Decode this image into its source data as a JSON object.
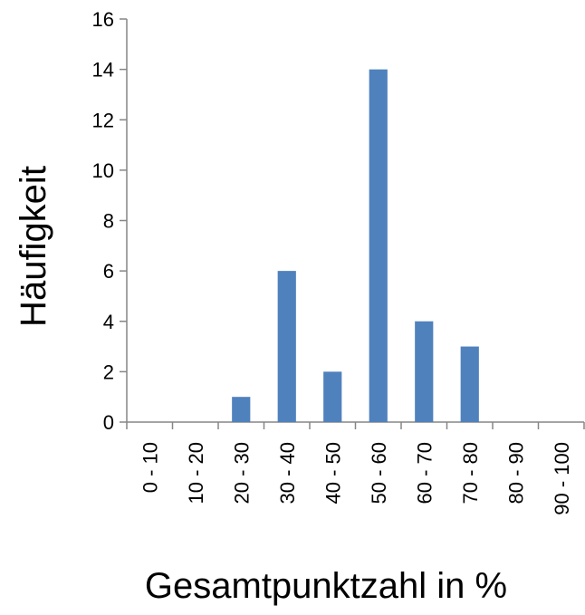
{
  "chart_data": {
    "type": "bar",
    "categories": [
      "0 - 10",
      "10 - 20",
      "20 - 30",
      "30 - 40",
      "40 - 50",
      "50 - 60",
      "60 - 70",
      "70 - 80",
      "80 - 90",
      "90 - 100"
    ],
    "values": [
      0,
      0,
      1,
      6,
      2,
      14,
      4,
      3,
      0,
      0
    ],
    "color": "#4f81bd",
    "ylim": [
      0,
      16
    ],
    "yticks": [
      0,
      2,
      4,
      6,
      8,
      10,
      12,
      14,
      16
    ],
    "xlabel": "Gesamtpunktzahl in %",
    "ylabel": "Häufigkeit",
    "grid": false
  }
}
